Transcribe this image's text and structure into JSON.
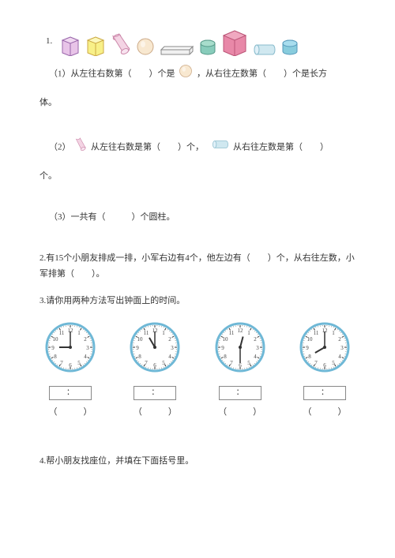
{
  "q1": {
    "number": "1.",
    "shapes": [
      {
        "type": "cube",
        "fill": "#e8c4e8",
        "stroke": "#9966aa"
      },
      {
        "type": "cube",
        "fill": "#f8f088",
        "stroke": "#ccaa44"
      },
      {
        "type": "cylinder-tilted",
        "fill": "#f4d4e4",
        "stroke": "#cc88aa"
      },
      {
        "type": "sphere",
        "fill": "#f8e8d0",
        "stroke": "#ccaa88"
      },
      {
        "type": "cuboid-flat",
        "fill": "#f0f0f0",
        "stroke": "#888888"
      },
      {
        "type": "cylinder-short",
        "fill": "#88ccbb",
        "stroke": "#559988"
      },
      {
        "type": "cube-large",
        "fill": "#e888a8",
        "stroke": "#bb5577"
      },
      {
        "type": "cylinder-horizontal",
        "fill": "#d0e8f0",
        "stroke": "#88bbcc"
      },
      {
        "type": "cylinder-short",
        "fill": "#88ccdd",
        "stroke": "#5599bb"
      }
    ],
    "part1_a": "（1）从左往右数第（",
    "part1_b": "）个是",
    "part1_c": "，从右往左数第（",
    "part1_d": "）个是长方",
    "part1_e": "体。",
    "sphere_inline": {
      "fill": "#f8e8d0",
      "stroke": "#ccaa88"
    },
    "part2_a": "（2）",
    "part2_b": "从左往右数是第（",
    "part2_c": "）个，",
    "part2_d": "从右往左数是第（",
    "part2_e": "）",
    "part2_f": "个。",
    "cyl_tilted_inline": {
      "fill": "#f4d4e4",
      "stroke": "#cc88aa"
    },
    "cyl_horiz_inline": {
      "fill": "#d0e8f0",
      "stroke": "#88bbcc"
    },
    "part3": "（3）一共有（　　　）个圆柱。"
  },
  "q2": "2.有15个小朋友排成一排，小军右边有4个，他左边有（　　）个，从右往左数，小军排第（　　）。",
  "q3": {
    "text": "3.请你用两种方法写出钟面上的时间。",
    "clocks": [
      {
        "hour": 9,
        "minute": 0
      },
      {
        "hour": 11,
        "minute": 0
      },
      {
        "hour": 12,
        "minute": 30
      },
      {
        "hour": 8,
        "minute": 0
      }
    ],
    "time_colon": "：",
    "paren": "（　　　）",
    "clock_colors": {
      "face": "#ffffff",
      "ring": "#6fb8d6",
      "tick": "#333",
      "hand": "#333",
      "num": "#444"
    }
  },
  "q4": "4.帮小朋友找座位，并填在下面括号里。"
}
